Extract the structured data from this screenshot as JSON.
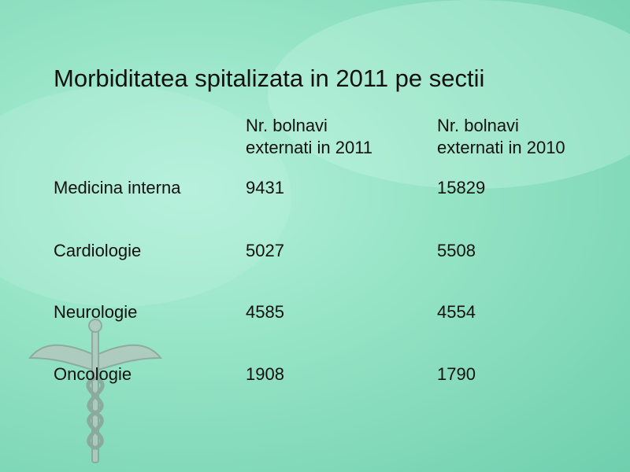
{
  "title": "Morbiditatea spitalizata in 2011 pe sectii",
  "table": {
    "header": [
      "Nr. bolnavi\nexternati in 2011",
      "Nr. bolnavi\nexternati in 2010"
    ],
    "rows": [
      [
        "Medicina interna",
        9431,
        15829
      ],
      [
        "Cardiologie",
        5027,
        5508
      ],
      [
        "Neurologie",
        4585,
        4554
      ],
      [
        "Oncologie",
        1908,
        1790
      ]
    ]
  }
}
